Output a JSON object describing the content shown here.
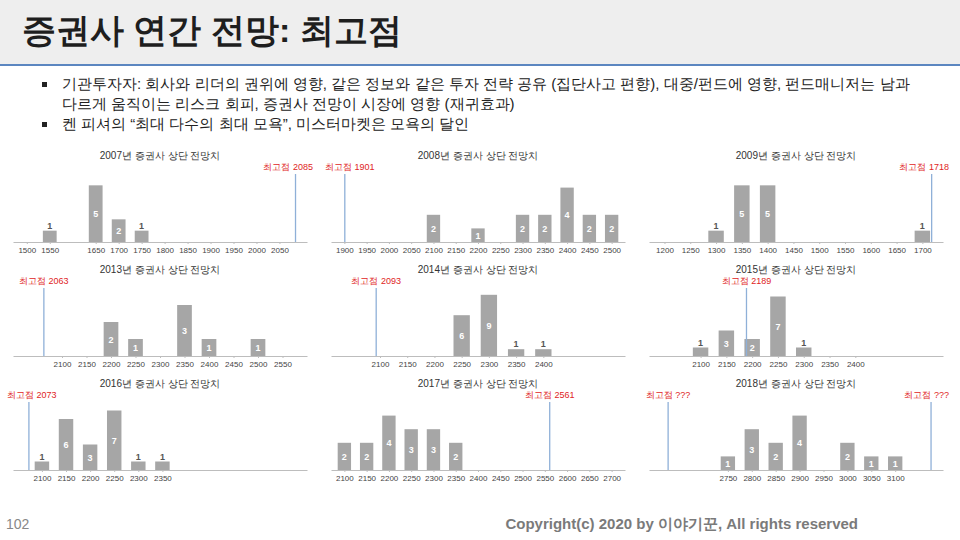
{
  "title": "증권사 연간 전망: 최고점",
  "bullets": [
    "기관투자자: 회사와 리더의 권위에 영향, 같은 정보와 같은 투자 전략 공유 (집단사고 편향), 대중/펀드에 영향, 펀드매니저는 남과 다르게 움직이는 리스크 회피, 증권사 전망이 시장에 영향 (재귀효과)",
    "켄 피셔의 “최대 다수의 최대 모욕”, 미스터마켓은 모욕의 달인"
  ],
  "page_number": "102",
  "copyright": "Copyright(c) 2020 by 이야기꾼, All rights reserved",
  "chart_data": [
    {
      "type": "bar",
      "title": "2007년 증권사 상단 전망치",
      "x": [
        1500,
        1550,
        1650,
        1700,
        1750,
        1800,
        1850,
        1900,
        1950,
        2000,
        2050
      ],
      "values": [
        0,
        1,
        5,
        2,
        1,
        0,
        0,
        0,
        0,
        0,
        0
      ],
      "color": "#a6a6a6",
      "xlim": [
        1470,
        2110
      ],
      "xticks": [
        1500,
        1550,
        1650,
        1700,
        1750,
        1800,
        1850,
        1900,
        1950,
        2000,
        2050
      ],
      "ylim": [
        0,
        6
      ],
      "tick_labels": "x",
      "data_labels": true,
      "annotations": [
        {
          "text": "최고점 2085",
          "x": 2085
        }
      ]
    },
    {
      "type": "bar",
      "title": "2008년 증권사 상단 전망치",
      "x": [
        1900,
        1950,
        2000,
        2050,
        2100,
        2150,
        2200,
        2250,
        2300,
        2350,
        2400,
        2450,
        2500
      ],
      "values": [
        0,
        0,
        0,
        0,
        2,
        0,
        1,
        0,
        2,
        2,
        4,
        2,
        2
      ],
      "color": "#a6a6a6",
      "xlim": [
        1870,
        2530
      ],
      "xticks": [
        1900,
        1950,
        2000,
        2050,
        2100,
        2150,
        2200,
        2250,
        2300,
        2350,
        2400,
        2450,
        2500
      ],
      "ylim": [
        0,
        5
      ],
      "tick_labels": "x",
      "data_labels": true,
      "annotations": [
        {
          "text": "최고점 1901",
          "x": 1901
        }
      ]
    },
    {
      "type": "bar",
      "title": "2009년 증권사 상단 전망치",
      "x": [
        1200,
        1250,
        1300,
        1350,
        1400,
        1450,
        1500,
        1550,
        1600,
        1650,
        1700
      ],
      "values": [
        0,
        0,
        1,
        5,
        5,
        0,
        0,
        0,
        0,
        0,
        1
      ],
      "color": "#a6a6a6",
      "xlim": [
        1170,
        1740
      ],
      "xticks": [
        1200,
        1250,
        1300,
        1350,
        1400,
        1450,
        1500,
        1550,
        1600,
        1650,
        1700
      ],
      "ylim": [
        0,
        6
      ],
      "tick_labels": "x",
      "data_labels": true,
      "annotations": [
        {
          "text": "최고점 1718",
          "x": 1718
        }
      ]
    },
    {
      "type": "bar",
      "title": "2013년 증권사 상단 전망치",
      "x": [
        2100,
        2150,
        2200,
        2250,
        2300,
        2350,
        2400,
        2450,
        2500,
        2550
      ],
      "values": [
        0,
        0,
        2,
        1,
        0,
        3,
        1,
        0,
        1,
        0
      ],
      "color": "#a6a6a6",
      "xlim": [
        2000,
        2600
      ],
      "xticks": [
        2100,
        2150,
        2200,
        2250,
        2300,
        2350,
        2400,
        2450,
        2500,
        2550
      ],
      "ylim": [
        0,
        4
      ],
      "tick_labels": "x",
      "data_labels": true,
      "annotations": [
        {
          "text": "최고점 2063",
          "x": 2063
        }
      ]
    },
    {
      "type": "bar",
      "title": "2014년 증권사 상단 전망치",
      "x": [
        2100,
        2150,
        2200,
        2250,
        2300,
        2350,
        2400
      ],
      "values": [
        0,
        0,
        0,
        6,
        9,
        1,
        1
      ],
      "color": "#a6a6a6",
      "xlim": [
        2010,
        2550
      ],
      "xticks": [
        2100,
        2150,
        2200,
        2250,
        2300,
        2350,
        2400
      ],
      "ylim": [
        0,
        10
      ],
      "tick_labels": "x",
      "data_labels": true,
      "annotations": [
        {
          "text": "최고점 2093",
          "x": 2093
        }
      ]
    },
    {
      "type": "bar",
      "title": "2015년 증권사 상단 전망치",
      "x": [
        2100,
        2150,
        2200,
        2250,
        2300,
        2350,
        2400
      ],
      "values": [
        1,
        3,
        2,
        7,
        1,
        0,
        0
      ],
      "color": "#a6a6a6",
      "xlim": [
        2000,
        2570
      ],
      "xticks": [
        2100,
        2150,
        2200,
        2250,
        2300,
        2350,
        2400
      ],
      "ylim": [
        0,
        8
      ],
      "tick_labels": "x",
      "data_labels": true,
      "annotations": [
        {
          "text": "최고점 2189",
          "x": 2189
        }
      ]
    },
    {
      "type": "bar",
      "title": "2016년 증권사 상단 전망치",
      "x": [
        2100,
        2150,
        2200,
        2250,
        2300,
        2350
      ],
      "values": [
        1,
        6,
        3,
        7,
        1,
        1
      ],
      "color": "#a6a6a6",
      "xlim": [
        2040,
        2650
      ],
      "xticks": [
        2100,
        2150,
        2200,
        2250,
        2300,
        2350
      ],
      "ylim": [
        0,
        8
      ],
      "tick_labels": "x",
      "data_labels": true,
      "annotations": [
        {
          "text": "최고점 2073",
          "x": 2073
        }
      ]
    },
    {
      "type": "bar",
      "title": "2017년 증권사 상단 전망치",
      "x": [
        2100,
        2150,
        2200,
        2250,
        2300,
        2350,
        2400,
        2450,
        2500,
        2550,
        2600,
        2650,
        2700
      ],
      "values": [
        2,
        2,
        4,
        3,
        3,
        2,
        0,
        0,
        0,
        0,
        0,
        0,
        0
      ],
      "color": "#a6a6a6",
      "xlim": [
        2070,
        2730
      ],
      "xticks": [
        2100,
        2150,
        2200,
        2250,
        2300,
        2350,
        2400,
        2450,
        2500,
        2550,
        2600,
        2650,
        2700
      ],
      "ylim": [
        0,
        5
      ],
      "tick_labels": "x",
      "data_labels": true,
      "annotations": [
        {
          "text": "최고점 2561",
          "x": 2561
        }
      ]
    },
    {
      "type": "bar",
      "title": "2018년 증권사 상단 전망치",
      "x": [
        2750,
        2800,
        2850,
        2900,
        2950,
        3000,
        3050,
        3100
      ],
      "values": [
        1,
        3,
        2,
        4,
        0,
        2,
        1,
        1
      ],
      "color": "#a6a6a6",
      "xlim": [
        2585,
        3200
      ],
      "xticks": [
        2750,
        2800,
        2850,
        2900,
        2950,
        3000,
        3050,
        3100
      ],
      "ylim": [
        0,
        5
      ],
      "tick_labels": "x",
      "data_labels": true,
      "annotations": [
        {
          "text": "최고점 ???",
          "x": 2625
        },
        {
          "text": "최고점 ???",
          "x": 3175
        }
      ]
    }
  ]
}
